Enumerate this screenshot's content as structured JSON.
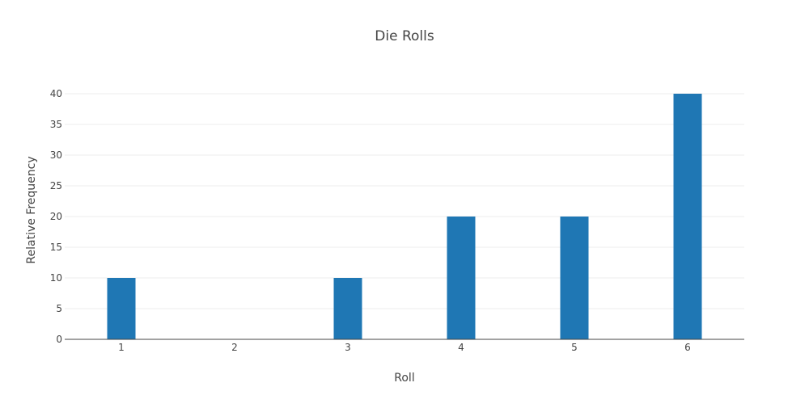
{
  "chart_data": {
    "type": "bar",
    "title": "Die Rolls",
    "xlabel": "Roll",
    "ylabel": "Relative Frequency",
    "categories": [
      "1",
      "2",
      "3",
      "4",
      "5",
      "6"
    ],
    "values": [
      10,
      0,
      10,
      20,
      20,
      40
    ],
    "ylim": [
      0,
      40
    ],
    "yticks": [
      "0",
      "5",
      "10",
      "15",
      "20",
      "25",
      "30",
      "35",
      "40"
    ],
    "grid": true,
    "legend": "none",
    "bar_color": "#1f77b4",
    "grid_color": "#eeeeee",
    "axis_line_color": "#444444"
  }
}
